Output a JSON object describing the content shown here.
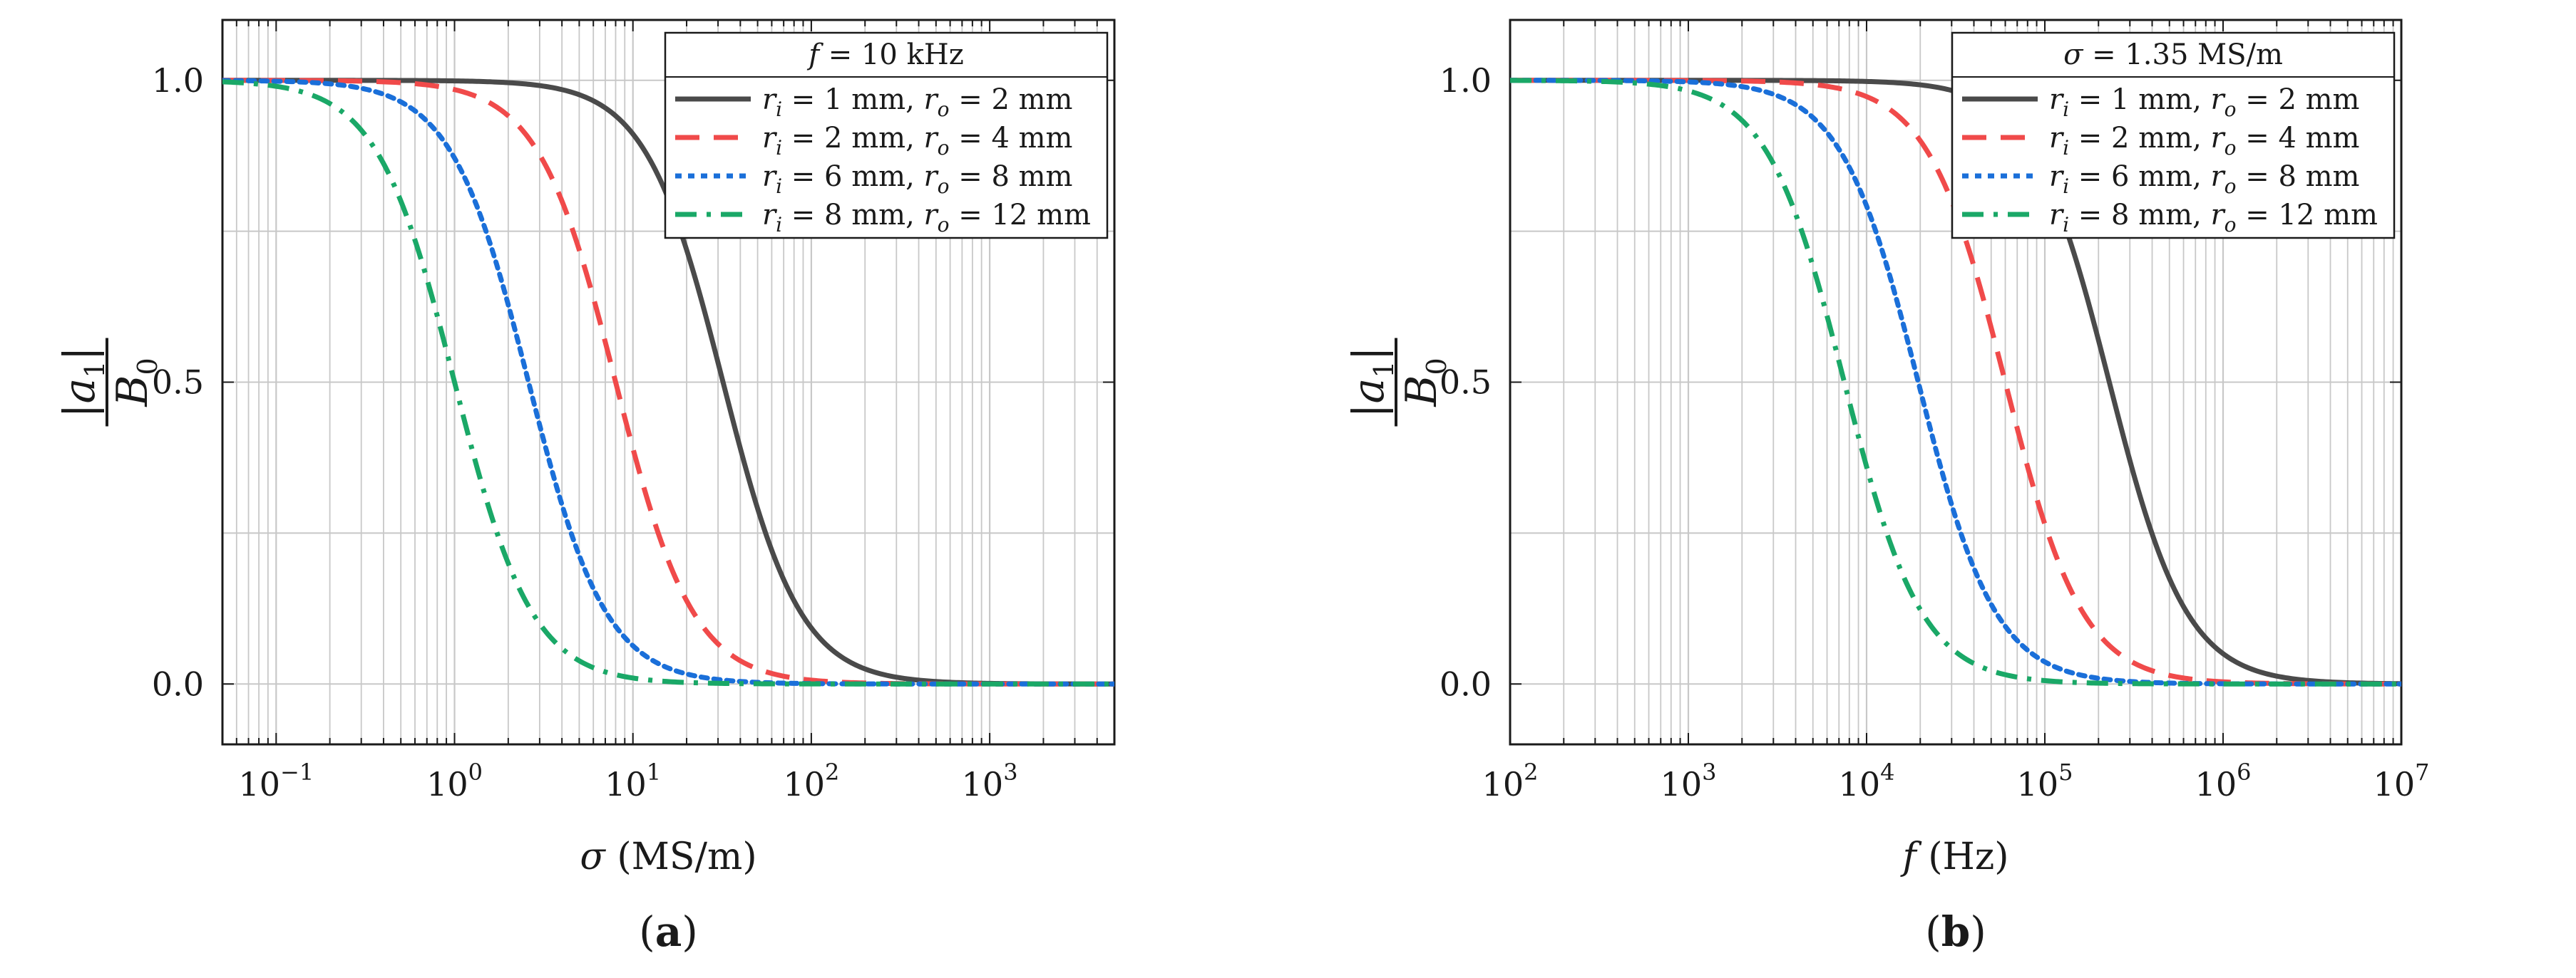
{
  "colors": {
    "series1": "#4a4a4a",
    "series2": "#f04a4a",
    "series3": "#1a6fd9",
    "series4": "#1aa867",
    "grid": "#c8c8c8",
    "axis": "#1a1a1a"
  },
  "chart_data": [
    {
      "id": "a",
      "type": "line",
      "caption": "(a)",
      "caption_letter": "a",
      "xscale": "log",
      "xlim": [
        0.05,
        5000
      ],
      "ylim": [
        -0.1,
        1.1
      ],
      "xlabel": "σ (MS/m)",
      "xlabel_var": "σ",
      "xlabel_unit": "(MS/m)",
      "ylabel": "|a1| / B0",
      "ylabel_num": "|a",
      "ylabel_num_sub": "1",
      "ylabel_den": "B",
      "ylabel_den_sub": "0",
      "xticks": [
        {
          "value": 0.1,
          "base": "10",
          "exp": "−1"
        },
        {
          "value": 1,
          "base": "10",
          "exp": "0"
        },
        {
          "value": 10,
          "base": "10",
          "exp": "1"
        },
        {
          "value": 100,
          "base": "10",
          "exp": "2"
        },
        {
          "value": 1000,
          "base": "10",
          "exp": "3"
        }
      ],
      "yticks": [
        {
          "value": 0.0,
          "label": "0.0"
        },
        {
          "value": 0.5,
          "label": "0.5"
        },
        {
          "value": 1.0,
          "label": "1.0"
        }
      ],
      "legend": {
        "title": "f = 10 kHz",
        "title_var": "f",
        "title_rest": " = 10 kHz",
        "placement": "top-right"
      },
      "series": [
        {
          "name": "ri = 1 mm, ro = 2 mm",
          "ri": "1",
          "ro": "2",
          "color_key": "series1",
          "dash": "solid",
          "midpoint": 32,
          "slope": 2.0
        },
        {
          "name": "ri = 2 mm, ro = 4 mm",
          "ri": "2",
          "ro": "4",
          "color_key": "series2",
          "dash": "dashed",
          "midpoint": 8,
          "slope": 2.0
        },
        {
          "name": "ri = 6 mm, ro = 8 mm",
          "ri": "6",
          "ro": "8",
          "color_key": "series3",
          "dash": "dotted",
          "midpoint": 2.6,
          "slope": 2.0
        },
        {
          "name": "ri = 8 mm, ro = 12 mm",
          "ri": "8",
          "ro": "12",
          "color_key": "series4",
          "dash": "dashdot",
          "midpoint": 1.0,
          "slope": 2.0
        }
      ]
    },
    {
      "id": "b",
      "type": "line",
      "caption": "(b)",
      "caption_letter": "b",
      "xscale": "log",
      "xlim": [
        100,
        10000000
      ],
      "ylim": [
        -0.1,
        1.1
      ],
      "xlabel": "f (Hz)",
      "xlabel_var": "f",
      "xlabel_unit": "(Hz)",
      "ylabel": "|a1| / B0",
      "ylabel_num": "|a",
      "ylabel_num_sub": "1",
      "ylabel_den": "B",
      "ylabel_den_sub": "0",
      "xticks": [
        {
          "value": 100,
          "base": "10",
          "exp": "2"
        },
        {
          "value": 1000,
          "base": "10",
          "exp": "3"
        },
        {
          "value": 10000,
          "base": "10",
          "exp": "4"
        },
        {
          "value": 100000,
          "base": "10",
          "exp": "5"
        },
        {
          "value": 1000000,
          "base": "10",
          "exp": "6"
        },
        {
          "value": 10000000,
          "base": "10",
          "exp": "7"
        }
      ],
      "yticks": [
        {
          "value": 0.0,
          "label": "0.0"
        },
        {
          "value": 0.5,
          "label": "0.5"
        },
        {
          "value": 1.0,
          "label": "1.0"
        }
      ],
      "legend": {
        "title": "σ = 1.35 MS/m",
        "title_var": "σ",
        "title_rest": " = 1.35 MS/m",
        "placement": "top-right"
      },
      "series": [
        {
          "name": "ri = 1 mm, ro = 2 mm",
          "ri": "1",
          "ro": "2",
          "color_key": "series1",
          "dash": "solid",
          "midpoint": 230000,
          "slope": 2.0
        },
        {
          "name": "ri = 2 mm, ro = 4 mm",
          "ri": "2",
          "ro": "4",
          "color_key": "series2",
          "dash": "dashed",
          "midpoint": 60000,
          "slope": 2.0
        },
        {
          "name": "ri = 6 mm, ro = 8 mm",
          "ri": "6",
          "ro": "8",
          "color_key": "series3",
          "dash": "dotted",
          "midpoint": 19500,
          "slope": 2.0
        },
        {
          "name": "ri = 8 mm, ro = 12 mm",
          "ri": "8",
          "ro": "12",
          "color_key": "series4",
          "dash": "dashdot",
          "midpoint": 7500,
          "slope": 2.0
        }
      ]
    }
  ]
}
